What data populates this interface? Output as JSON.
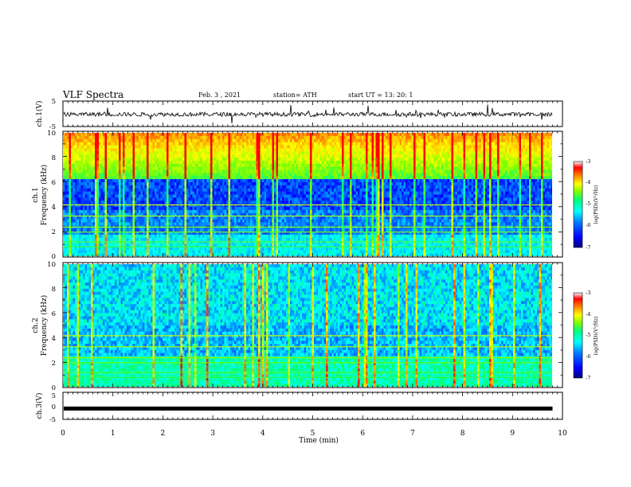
{
  "header": {
    "title": "VLF Spectra",
    "date": "Feb. 3  , 2021",
    "station": "station= ATH",
    "start": "start  UT  =   13: 20: 1"
  },
  "chart_data": [
    {
      "type": "line",
      "panel": "ch1-waveform",
      "ylabel": "ch.1(V)",
      "ylim": [
        -5,
        5
      ],
      "yticks": [
        "5",
        "-5"
      ],
      "x_range_min": [
        0,
        9.8
      ],
      "typical_level": -0.2
    },
    {
      "type": "heatmap",
      "panel": "ch1-spectrogram",
      "ylabel_line1": "ch.1",
      "ylabel_line2": "Frequency (kHz)",
      "ylim": [
        0,
        10
      ],
      "yticks": [
        "0",
        "2",
        "4",
        "6",
        "8",
        "10"
      ],
      "x_range_min": [
        0,
        9.8
      ],
      "colorbar": {
        "label": "log(PSD)(V²/Hz)",
        "range": [
          -7,
          -3
        ],
        "ticks": [
          "-3",
          "-4",
          "-5",
          "-6",
          "-7"
        ]
      }
    },
    {
      "type": "heatmap",
      "panel": "ch2-spectrogram",
      "ylabel_line1": "ch.2",
      "ylabel_line2": "Frequency (kHz)",
      "ylim": [
        0,
        10
      ],
      "yticks": [
        "0",
        "2",
        "4",
        "6",
        "8",
        "10"
      ],
      "x_range_min": [
        0,
        9.8
      ],
      "colorbar": {
        "label": "log(PSD)(V²/Hz)",
        "range": [
          -7,
          -3
        ],
        "ticks": [
          "-3",
          "-4",
          "-5",
          "-6",
          "-7"
        ]
      }
    },
    {
      "type": "line",
      "panel": "ch3-waveform",
      "ylabel": "ch.3(V)",
      "ylim": [
        -5,
        5
      ],
      "yticks": [
        "5",
        "0",
        "-5"
      ],
      "x_range_min": [
        0,
        9.8
      ],
      "typical_level": -1
    }
  ],
  "xaxis": {
    "label": "Time  (min)",
    "ticks": [
      "0",
      "1",
      "2",
      "3",
      "4",
      "5",
      "6",
      "7",
      "8",
      "9",
      "10"
    ],
    "range": [
      0,
      10
    ]
  },
  "colors": {
    "colormap": [
      "#000080",
      "#0000ff",
      "#0080ff",
      "#00ffff",
      "#00ff80",
      "#80ff00",
      "#ffff00",
      "#ff8000",
      "#ff0000",
      "#ffffff"
    ]
  }
}
